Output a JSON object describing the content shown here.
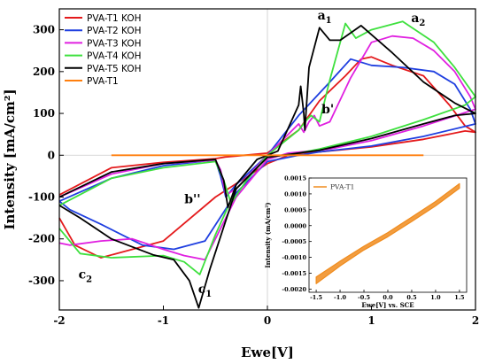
{
  "chart_data": [
    {
      "type": "line",
      "xlabel": "Ewe[V]",
      "ylabel": "Intensity [mA/cm²]",
      "xlim": [
        -2,
        2
      ],
      "ylim": [
        -370,
        350
      ],
      "xticks": [
        -2,
        -1,
        0,
        1,
        2
      ],
      "yticks": [
        -300,
        -200,
        -100,
        0,
        100,
        200,
        300
      ],
      "legend_position": "top-left",
      "series": [
        {
          "name": "PVA-T1 KOH",
          "color": "#e41a1c",
          "x": [
            -2.0,
            -1.5,
            -1.0,
            -0.5,
            -0.4,
            -0.3,
            0.0,
            0.3,
            0.5,
            0.75,
            0.9,
            1.0,
            1.2,
            1.5,
            1.75,
            1.9,
            2.0,
            1.9,
            1.5,
            1.0,
            0.5,
            0.4,
            0.35,
            0.2,
            0.0,
            -0.5,
            -1.0,
            -1.6,
            -1.85,
            -2.0
          ],
          "y": [
            -95,
            -30,
            -17,
            -8,
            -4,
            -2,
            5,
            60,
            130,
            190,
            230,
            235,
            215,
            190,
            120,
            70,
            55,
            58,
            38,
            20,
            8,
            6,
            3,
            0,
            -20,
            -100,
            -205,
            -245,
            -215,
            -150
          ]
        },
        {
          "name": "PVA-T2 KOH",
          "color": "#1f3fe0",
          "x": [
            -2.0,
            -1.5,
            -1.0,
            -0.6,
            -0.5,
            -0.45,
            -0.4,
            -0.3,
            0.0,
            0.3,
            0.6,
            0.8,
            1.0,
            1.3,
            1.6,
            1.8,
            1.95,
            2.0,
            1.5,
            1.0,
            0.5,
            0.3,
            0.0,
            -0.3,
            -0.6,
            -0.9,
            -1.2,
            -1.6,
            -1.9,
            -2.0
          ],
          "y": [
            -110,
            -55,
            -25,
            -14,
            -12,
            -50,
            -100,
            -70,
            0,
            95,
            175,
            230,
            215,
            210,
            200,
            170,
            110,
            75,
            45,
            22,
            8,
            0,
            -15,
            -90,
            -205,
            -225,
            -215,
            -165,
            -130,
            -110
          ]
        },
        {
          "name": "PVA-T3 KOH",
          "color": "#e020e0",
          "x": [
            -2.0,
            -1.5,
            -1.0,
            -0.5,
            -0.45,
            -0.4,
            -0.3,
            0.0,
            0.3,
            0.35,
            0.4,
            0.45,
            0.5,
            0.6,
            0.8,
            1.0,
            1.2,
            1.4,
            1.6,
            1.8,
            1.95,
            2.0,
            1.5,
            1.0,
            0.6,
            0.4,
            0.2,
            0.0,
            -0.3,
            -0.6,
            -0.8,
            -1.0,
            -1.3,
            -1.6,
            -1.9,
            -2.0
          ],
          "y": [
            -100,
            -45,
            -20,
            -12,
            -35,
            -95,
            -80,
            0,
            75,
            55,
            80,
            95,
            70,
            80,
            185,
            270,
            285,
            280,
            250,
            200,
            140,
            110,
            70,
            35,
            15,
            10,
            5,
            -10,
            -100,
            -250,
            -240,
            -225,
            -200,
            -205,
            -215,
            -210
          ]
        },
        {
          "name": "PVA-T4 KOH",
          "color": "#3ee03e",
          "x": [
            -2.0,
            -1.5,
            -1.0,
            -0.5,
            -0.42,
            -0.35,
            -0.2,
            0.0,
            0.3,
            0.38,
            0.42,
            0.5,
            0.6,
            0.75,
            0.85,
            1.0,
            1.3,
            1.6,
            1.8,
            2.0,
            1.9,
            1.5,
            1.0,
            0.5,
            0.3,
            0.0,
            -0.3,
            -0.5,
            -0.65,
            -0.8,
            -1.0,
            -1.5,
            -1.8,
            -2.0
          ],
          "y": [
            -120,
            -55,
            -30,
            -15,
            -60,
            -115,
            -60,
            0,
            60,
            85,
            95,
            80,
            180,
            315,
            280,
            300,
            320,
            270,
            210,
            140,
            120,
            85,
            45,
            15,
            5,
            -5,
            -80,
            -190,
            -285,
            -255,
            -240,
            -245,
            -235,
            -175
          ]
        },
        {
          "name": "PVA-T5 KOH",
          "color": "#000000",
          "x": [
            -2.0,
            -1.5,
            -1.0,
            -0.5,
            -0.42,
            -0.38,
            -0.3,
            -0.1,
            0.0,
            0.1,
            0.3,
            0.32,
            0.35,
            0.36,
            0.4,
            0.5,
            0.6,
            0.7,
            0.9,
            1.2,
            1.5,
            1.8,
            2.0,
            1.8,
            1.5,
            1.0,
            0.5,
            0.38,
            0.3,
            0.0,
            -0.3,
            -0.55,
            -0.66,
            -0.75,
            -0.9,
            -1.1,
            -1.5,
            -1.8,
            -2.0
          ],
          "y": [
            -100,
            -40,
            -20,
            -10,
            -60,
            -125,
            -70,
            -10,
            0,
            10,
            120,
            165,
            100,
            60,
            210,
            305,
            275,
            275,
            310,
            245,
            175,
            125,
            100,
            95,
            75,
            40,
            12,
            8,
            5,
            -5,
            -80,
            -270,
            -365,
            -300,
            -250,
            -238,
            -200,
            -150,
            -120
          ]
        },
        {
          "name": "PVA-T1",
          "color": "#ff7f0e",
          "x": [
            -1.5,
            1.5
          ],
          "y": [
            0,
            0
          ]
        }
      ],
      "annotations": [
        {
          "text": "a",
          "sub": "1",
          "x": 0.55,
          "y": 325
        },
        {
          "text": "a",
          "sub": "2",
          "x": 1.45,
          "y": 318
        },
        {
          "text": "b'",
          "sub": "",
          "x": 0.58,
          "y": 100
        },
        {
          "text": "b''",
          "sub": "",
          "x": -0.72,
          "y": -115
        },
        {
          "text": "c",
          "sub": "1",
          "x": -0.6,
          "y": -330
        },
        {
          "text": "c",
          "sub": "2",
          "x": -1.75,
          "y": -295
        }
      ]
    },
    {
      "type": "line",
      "xlabel": "Ewe[V] vs. SCE",
      "ylabel": "Intensity (mA/cm²)",
      "xlim": [
        -1.65,
        1.65
      ],
      "ylim": [
        -0.0021,
        0.0015
      ],
      "xticks": [
        -1.5,
        -1.0,
        -0.5,
        0.0,
        0.5,
        1.0,
        1.5
      ],
      "xtick_labels": [
        "-1.5",
        "-1.0",
        "-0.5",
        "0.0",
        "0.5",
        "1.0",
        "1.5"
      ],
      "yticks": [
        0.0015,
        0.001,
        0.0005,
        0.0,
        -0.0005,
        -0.001,
        -0.0015,
        -0.002
      ],
      "ytick_labels": [
        "0.0015",
        "0.0010",
        "0.0005",
        "0.0000",
        "-0.0005",
        "-0.0010",
        "-0.0015",
        "-0.0020"
      ],
      "legend_position": "top-left",
      "series": [
        {
          "name": "PVA-T1",
          "color": "#f08c1e",
          "x": [
            -1.5,
            -1.0,
            -0.5,
            0.0,
            0.5,
            1.0,
            1.5,
            1.5,
            1.0,
            0.5,
            0.0,
            -0.5,
            -1.0,
            -1.5
          ],
          "y": [
            -0.00183,
            -0.00127,
            -0.00077,
            -0.00035,
            0.00013,
            0.00062,
            0.00118,
            0.00132,
            0.00076,
            0.00027,
            -0.00022,
            -0.00065,
            -0.00112,
            -0.00162
          ]
        }
      ]
    }
  ]
}
